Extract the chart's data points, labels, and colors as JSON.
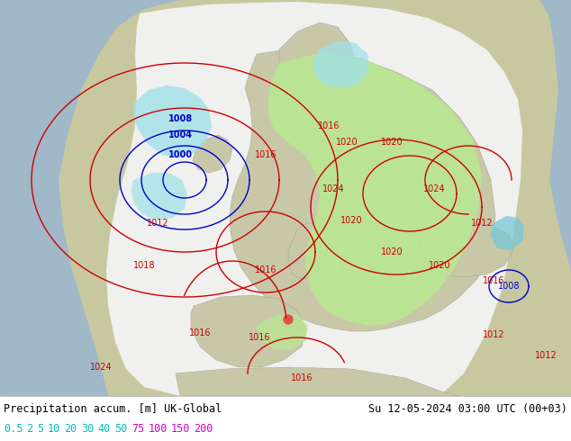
{
  "title_left": "Precipitation accum. [m] UK-Global",
  "title_right": "Su 12-05-2024 03:00 UTC (00+03)",
  "legend_values": [
    "0.5",
    "2",
    "5",
    "10",
    "20",
    "30",
    "40",
    "50",
    "75",
    "100",
    "150",
    "200"
  ],
  "cyan_count": 8,
  "cyan_color": "#00bbbb",
  "magenta_color": "#cc00cc",
  "bg_color": "#ffffff",
  "land_color": "#c8c8a0",
  "land_color2": "#b8b890",
  "ocean_color": "#a0b8c8",
  "model_domain_color": "#e8ece0",
  "precip_light_green": "#b8e890",
  "precip_green": "#90d870",
  "precip_cyan_light": "#a0e0e8",
  "precip_cyan": "#78c8d8",
  "precip_blue": "#78a8d8",
  "label_fontsize": 8.5,
  "legend_fontsize": 8.5,
  "fig_width": 6.34,
  "fig_height": 4.9,
  "dpi": 100,
  "contour_red": "#cc0000",
  "contour_blue": "#0000cc",
  "contour_blue_light": "#4444ff"
}
